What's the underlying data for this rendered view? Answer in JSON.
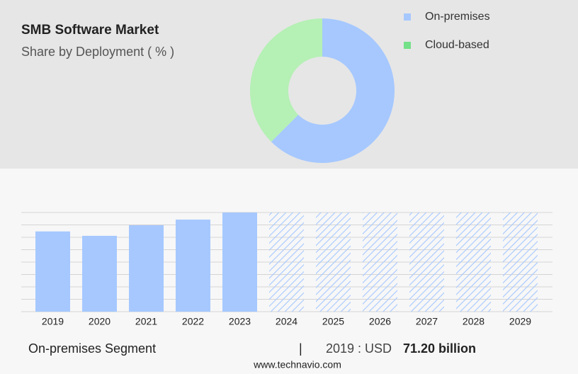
{
  "chart_data": [
    {
      "type": "pie",
      "title": "SMB Software Market",
      "subtitle": "Share by Deployment ( % )",
      "categories": [
        "On-premises",
        "Cloud-based"
      ],
      "values": [
        62.5,
        37.5
      ],
      "colors": [
        "#a6c8ff",
        "#b5f0b5"
      ],
      "legend_colors": [
        "#a6c8ff",
        "#74e088"
      ],
      "donut": true
    },
    {
      "type": "bar",
      "categories": [
        "2019",
        "2020",
        "2021",
        "2022",
        "2023",
        "2024",
        "2025",
        "2026",
        "2027",
        "2028",
        "2029"
      ],
      "values": [
        71.2,
        67.3,
        76.7,
        81.7,
        88,
        null,
        null,
        null,
        null,
        null,
        null
      ],
      "color": "#a6c8ff",
      "ylim": [
        0,
        88
      ],
      "yticks": [
        0,
        11,
        22,
        33,
        44,
        55,
        66,
        77,
        88
      ],
      "grid": true
    }
  ],
  "footer": {
    "segment": "On-premises Segment",
    "separator": "|",
    "year_label": "2019 : USD",
    "value_label": "71.20 billion",
    "source": "www.technavio.com"
  }
}
